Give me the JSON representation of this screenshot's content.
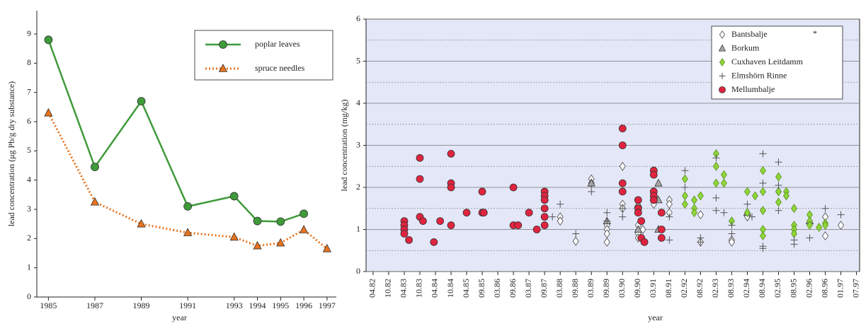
{
  "chart_data": [
    {
      "type": "line",
      "x_label": "year",
      "y_label": "lead concentration (μg Pb/g dry substance)",
      "x": [
        1985,
        1987,
        1989,
        1991,
        1993,
        1994,
        1995,
        1996,
        1997
      ],
      "series": [
        {
          "name": "poplar leaves",
          "color": "#3f9a3a",
          "marker": "circle",
          "line": "solid",
          "values": [
            8.8,
            4.45,
            6.7,
            3.1,
            3.45,
            2.6,
            2.58,
            2.85,
            null
          ]
        },
        {
          "name": "spruce needles",
          "color": "#e8731e",
          "marker": "triangle",
          "line": "dotted",
          "values": [
            6.3,
            3.25,
            2.5,
            2.2,
            2.05,
            1.75,
            1.85,
            2.3,
            1.65
          ]
        }
      ],
      "xlim": [
        1984.5,
        1997.4
      ],
      "xticks": [
        1985,
        1987,
        1989,
        1991,
        1993,
        1994,
        1995,
        1996,
        1997
      ],
      "ylim": [
        0,
        9.8
      ],
      "yticks": [
        0,
        1,
        2,
        3,
        4,
        5,
        6,
        7,
        8,
        9
      ],
      "legend": "upper right",
      "grid": false
    },
    {
      "type": "scatter",
      "x_label": "year",
      "y_label": "lead concentration (mg/kg)",
      "annotation": "*",
      "xlim": [
        -0.45,
        31.2
      ],
      "xticks": [
        {
          "value": 0,
          "label": "04.82"
        },
        {
          "value": 1,
          "label": "10.82"
        },
        {
          "value": 2,
          "label": "04.83"
        },
        {
          "value": 3,
          "label": "10.83"
        },
        {
          "value": 4,
          "label": "04.84"
        },
        {
          "value": 5,
          "label": "10.84"
        },
        {
          "value": 6,
          "label": "04.85"
        },
        {
          "value": 7,
          "label": "09.85"
        },
        {
          "value": 8,
          "label": "03.86"
        },
        {
          "value": 9,
          "label": "09.86"
        },
        {
          "value": 10,
          "label": "03.87"
        },
        {
          "value": 11,
          "label": "09.87"
        },
        {
          "value": 12,
          "label": "03.88"
        },
        {
          "value": 13,
          "label": "09.88"
        },
        {
          "value": 14,
          "label": "03.89"
        },
        {
          "value": 15,
          "label": "09.89"
        },
        {
          "value": 16,
          "label": "03.90"
        },
        {
          "value": 17,
          "label": "09.90"
        },
        {
          "value": 18,
          "label": "03.91"
        },
        {
          "value": 19,
          "label": "08.91"
        },
        {
          "value": 20,
          "label": "02.92"
        },
        {
          "value": 21,
          "label": "08.92"
        },
        {
          "value": 22,
          "label": "02.93"
        },
        {
          "value": 23,
          "label": "08.93"
        },
        {
          "value": 24,
          "label": "02.94"
        },
        {
          "value": 25,
          "label": "08.94"
        },
        {
          "value": 26,
          "label": "02.95"
        },
        {
          "value": 27,
          "label": "08.95"
        },
        {
          "value": 28,
          "label": "02.96"
        },
        {
          "value": 29,
          "label": "08.96"
        },
        {
          "value": 30,
          "label": "01.97"
        },
        {
          "value": 31,
          "label": "07.97"
        }
      ],
      "ylim": [
        0,
        6
      ],
      "yticks": [
        0,
        1,
        2,
        3,
        4,
        5,
        6
      ],
      "minor_yticks": [
        0.5,
        1.5,
        2.5,
        3.5,
        4.5,
        5.5
      ],
      "grid": true,
      "legend": "upper right",
      "series": [
        {
          "name": "Bantsbalje",
          "marker": "diamond-open",
          "color": "#ffffff",
          "x": [
            12,
            12,
            13,
            14,
            14,
            15,
            15,
            15,
            15,
            16,
            16,
            16,
            17,
            17,
            17,
            17.3,
            18,
            18,
            19,
            19,
            19,
            21,
            21,
            23,
            23,
            24,
            24,
            26,
            29,
            29,
            30
          ],
          "values": [
            1.3,
            1.2,
            0.72,
            2.2,
            2.1,
            1.1,
            1.0,
            0.9,
            0.7,
            2.5,
            1.6,
            1.5,
            1.1,
            0.9,
            0.8,
            1.0,
            1.9,
            1.6,
            1.7,
            1.6,
            1.4,
            1.35,
            0.7,
            0.75,
            0.7,
            1.4,
            1.3,
            1.9,
            1.3,
            0.85,
            1.1
          ]
        },
        {
          "name": "Borkum",
          "marker": "triangle",
          "color": "#a8a8a8",
          "x": [
            14,
            15,
            17,
            17,
            18.3,
            18.3,
            18.3,
            24,
            28
          ],
          "values": [
            2.1,
            1.2,
            1.6,
            1.0,
            2.1,
            1.7,
            1.0,
            1.4,
            1.2
          ]
        },
        {
          "name": "Cuxhaven Leitdamm",
          "marker": "diamond",
          "color": "#8fd639",
          "x": [
            20,
            20,
            20,
            20.6,
            20.6,
            20.6,
            21,
            22,
            22,
            22,
            22.5,
            22.5,
            23,
            24,
            24,
            24.5,
            25,
            25,
            25,
            25,
            25,
            26,
            26,
            26,
            26.5,
            26.5,
            27,
            27,
            27,
            27,
            28,
            28,
            28,
            28.6,
            29,
            29
          ],
          "values": [
            2.2,
            1.8,
            1.6,
            1.7,
            1.5,
            1.4,
            1.8,
            2.8,
            2.5,
            2.1,
            2.3,
            2.1,
            1.2,
            1.9,
            1.4,
            1.8,
            2.4,
            1.9,
            1.45,
            1.0,
            0.85,
            2.25,
            1.9,
            1.65,
            1.9,
            1.8,
            1.5,
            1.1,
            1.0,
            0.9,
            1.35,
            1.2,
            1.1,
            1.05,
            1.15,
            1.1
          ]
        },
        {
          "name": "Elmshörn Rinne",
          "marker": "plus",
          "color": "#555555",
          "x": [
            11.5,
            12,
            13,
            14,
            15,
            15,
            16,
            16,
            18,
            19,
            19,
            20,
            20,
            21,
            21,
            22,
            22,
            22,
            22.5,
            23,
            23,
            24,
            24.3,
            25,
            25,
            25,
            25,
            26,
            26,
            26,
            27,
            27,
            28,
            29,
            30
          ],
          "values": [
            1.3,
            1.6,
            0.9,
            1.9,
            1.4,
            1.2,
            1.5,
            1.3,
            1.7,
            1.3,
            0.75,
            2.4,
            2.0,
            0.8,
            0.7,
            2.7,
            1.75,
            1.45,
            1.4,
            1.1,
            0.9,
            1.6,
            1.3,
            2.8,
            2.1,
            0.6,
            0.55,
            2.6,
            2.05,
            1.45,
            0.75,
            0.65,
            0.8,
            1.5,
            1.35
          ]
        },
        {
          "name": "Mellumbalje",
          "marker": "circle",
          "color": "#e0243f",
          "x": [
            2,
            2,
            2,
            2,
            2.3,
            3,
            3,
            3,
            3.2,
            3.9,
            4.3,
            5,
            5,
            5,
            5,
            6,
            7,
            7,
            7.1,
            9,
            9,
            9.3,
            10,
            10.5,
            11,
            11,
            11,
            11,
            11,
            11,
            16,
            16,
            16,
            16,
            17,
            17,
            17,
            17.2,
            17.2,
            17.4,
            18,
            18,
            18,
            18,
            18,
            18.5,
            18.5,
            18.5
          ],
          "values": [
            1.2,
            1.1,
            1.0,
            0.9,
            0.75,
            2.7,
            2.2,
            1.3,
            1.2,
            0.7,
            1.2,
            2.8,
            2.1,
            2.0,
            1.1,
            1.4,
            1.9,
            1.4,
            1.4,
            2.0,
            1.1,
            1.1,
            1.4,
            1.0,
            1.9,
            1.8,
            1.7,
            1.5,
            1.3,
            1.1,
            3.4,
            3.0,
            2.1,
            1.9,
            1.7,
            1.5,
            1.4,
            1.2,
            0.8,
            0.7,
            2.4,
            2.3,
            1.9,
            1.8,
            1.7,
            1.4,
            1.0,
            0.8
          ]
        }
      ]
    }
  ]
}
